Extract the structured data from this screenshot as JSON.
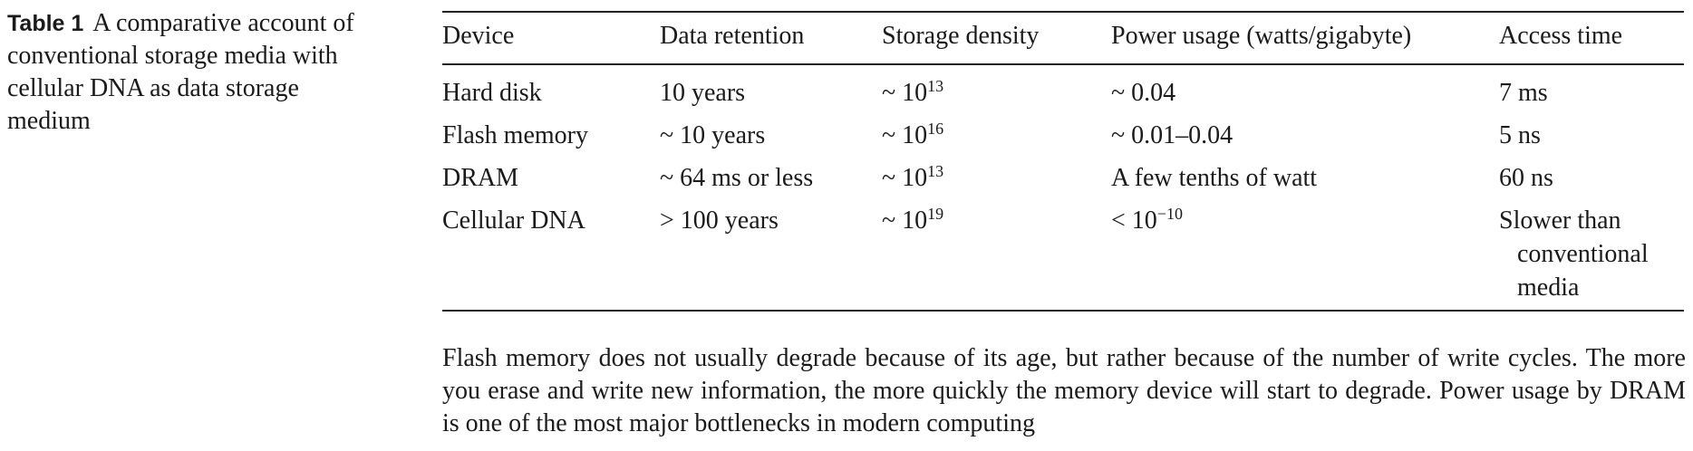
{
  "caption": {
    "label": "Table 1",
    "text": "A comparative account of conventional storage media with cellular DNA as data storage medium"
  },
  "table": {
    "headers": [
      "Device",
      "Data retention",
      "Storage density",
      "Power usage (watts/gigabyte)",
      "Access time"
    ],
    "rows": [
      {
        "device": "Hard disk",
        "retention": "10 years",
        "density_base": "~ 10",
        "density_exp": "13",
        "power_base": "~ 0.04",
        "power_exp": "",
        "access": [
          "7 ms"
        ]
      },
      {
        "device": "Flash memory",
        "retention": "~ 10 years",
        "density_base": "~ 10",
        "density_exp": "16",
        "power_base": "~ 0.01–0.04",
        "power_exp": "",
        "access": [
          "5 ns"
        ]
      },
      {
        "device": "DRAM",
        "retention": "~ 64 ms or less",
        "density_base": "~ 10",
        "density_exp": "13",
        "power_base": "A few tenths of watt",
        "power_exp": "",
        "access": [
          "60 ns"
        ]
      },
      {
        "device": "Cellular DNA",
        "retention": "> 100 years",
        "density_base": "~ 10",
        "density_exp": "19",
        "power_base": "< 10",
        "power_exp": "−10",
        "access": [
          "Slower than",
          "conventional",
          "media"
        ]
      }
    ]
  },
  "footnote": "Flash memory does not usually degrade because of its age, but rather because of the number of write cycles. The more you erase and write new information, the more quickly the memory device will start to degrade. Power usage by DRAM is one of the most major bottlenecks in modern computing"
}
